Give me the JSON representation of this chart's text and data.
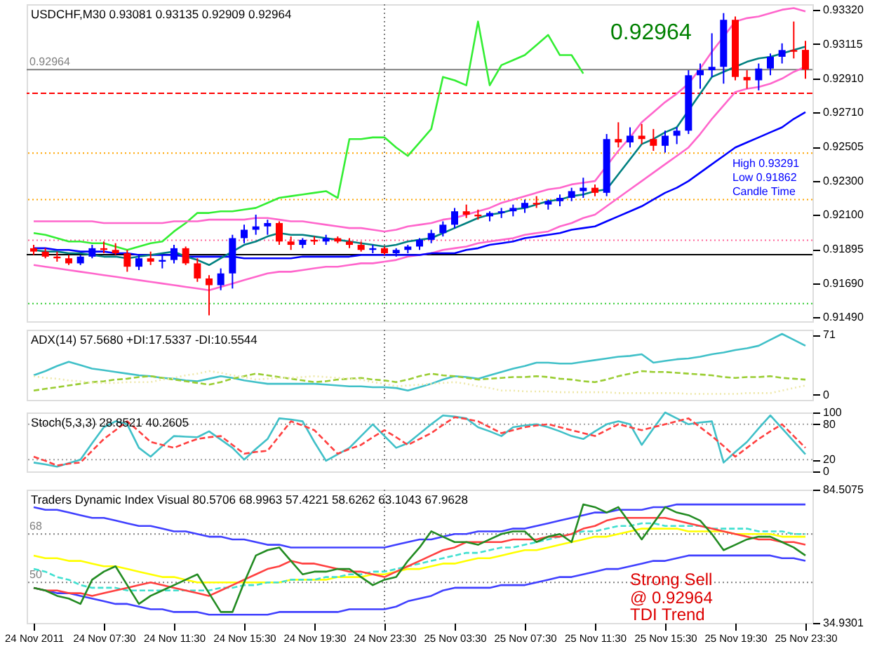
{
  "chart_data": [
    {
      "type": "candlestick",
      "title": "USDCHF,M30 0.93081 0.93135 0.92909 0.92964",
      "categories": [
        "24 Nov 2011",
        null,
        null,
        null,
        null,
        null,
        "24 Nov 07:30",
        null,
        null,
        null,
        null,
        null,
        "24 Nov 11:30",
        null,
        null,
        null,
        null,
        null,
        "24 Nov 15:30",
        null,
        null,
        null,
        null,
        null,
        "24 Nov 19:30",
        null,
        null,
        null,
        null,
        null,
        "24 Nov 23:30",
        null,
        null,
        null,
        null,
        null,
        "25 Nov 03:30",
        null,
        null,
        null,
        null,
        null,
        "25 Nov 07:30",
        null,
        null,
        null,
        null,
        null,
        "25 Nov 11:30",
        null,
        null,
        null,
        null,
        null,
        "25 Nov 15:30",
        null,
        null,
        null,
        null,
        null,
        "25 Nov 19:30",
        null,
        null,
        null,
        null,
        null,
        "25 Nov 23:30"
      ],
      "ohlc": [
        [
          0.919,
          0.9192,
          0.9186,
          0.9188
        ],
        [
          0.9188,
          0.919,
          0.9184,
          0.9185
        ],
        [
          0.9185,
          0.9188,
          0.9182,
          0.9184
        ],
        [
          0.9184,
          0.9186,
          0.918,
          0.9181
        ],
        [
          0.9181,
          0.9186,
          0.918,
          0.9185
        ],
        [
          0.9185,
          0.9192,
          0.9184,
          0.919
        ],
        [
          0.919,
          0.9194,
          0.9187,
          0.9189
        ],
        [
          0.9189,
          0.9193,
          0.9186,
          0.9187
        ],
        [
          0.9187,
          0.9189,
          0.9176,
          0.9179
        ],
        [
          0.9179,
          0.9186,
          0.9177,
          0.9184
        ],
        [
          0.9184,
          0.9188,
          0.918,
          0.9182
        ],
        [
          0.9182,
          0.9186,
          0.9178,
          0.9183
        ],
        [
          0.9183,
          0.9192,
          0.9181,
          0.919
        ],
        [
          0.919,
          0.9191,
          0.918,
          0.9181
        ],
        [
          0.9181,
          0.9184,
          0.917,
          0.9172
        ],
        [
          0.9172,
          0.9174,
          0.915,
          0.9168
        ],
        [
          0.9168,
          0.9178,
          0.9165,
          0.9175
        ],
        [
          0.9175,
          0.9198,
          0.9166,
          0.9196
        ],
        [
          0.9196,
          0.9204,
          0.9193,
          0.9201
        ],
        [
          0.9201,
          0.921,
          0.9198,
          0.9203
        ],
        [
          0.9203,
          0.9207,
          0.9198,
          0.9205
        ],
        [
          0.9205,
          0.9206,
          0.9192,
          0.9194
        ],
        [
          0.9194,
          0.9197,
          0.9189,
          0.9192
        ],
        [
          0.9192,
          0.9196,
          0.919,
          0.9195
        ],
        [
          0.9195,
          0.9197,
          0.9192,
          0.9194
        ],
        [
          0.9194,
          0.9198,
          0.9192,
          0.9196
        ],
        [
          0.9196,
          0.9197,
          0.9193,
          0.9194
        ],
        [
          0.9194,
          0.9196,
          0.919,
          0.9192
        ],
        [
          0.9192,
          0.9194,
          0.9188,
          0.9189
        ],
        [
          0.9189,
          0.9192,
          0.9187,
          0.919
        ],
        [
          0.919,
          0.9191,
          0.9186,
          0.9187
        ],
        [
          0.9187,
          0.919,
          0.9185,
          0.9189
        ],
        [
          0.9189,
          0.9192,
          0.9187,
          0.9191
        ],
        [
          0.9191,
          0.9196,
          0.9189,
          0.9195
        ],
        [
          0.9195,
          0.9201,
          0.9193,
          0.9199
        ],
        [
          0.9199,
          0.9206,
          0.9197,
          0.9204
        ],
        [
          0.9204,
          0.9214,
          0.9202,
          0.9212
        ],
        [
          0.9212,
          0.9216,
          0.9208,
          0.921
        ],
        [
          0.921,
          0.9213,
          0.9207,
          0.9209
        ],
        [
          0.9209,
          0.9212,
          0.9206,
          0.9211
        ],
        [
          0.9211,
          0.9214,
          0.9208,
          0.9212
        ],
        [
          0.9212,
          0.9216,
          0.9209,
          0.9214
        ],
        [
          0.9214,
          0.9219,
          0.9211,
          0.9217
        ],
        [
          0.9217,
          0.9221,
          0.9214,
          0.9216
        ],
        [
          0.9216,
          0.9219,
          0.9213,
          0.9218
        ],
        [
          0.9218,
          0.9222,
          0.9215,
          0.922
        ],
        [
          0.922,
          0.9226,
          0.9218,
          0.9224
        ],
        [
          0.9224,
          0.9232,
          0.922,
          0.9226
        ],
        [
          0.9226,
          0.9228,
          0.9221,
          0.9223
        ],
        [
          0.9223,
          0.9258,
          0.9221,
          0.9255
        ],
        [
          0.9255,
          0.9265,
          0.925,
          0.9253
        ],
        [
          0.9253,
          0.9262,
          0.925,
          0.9257
        ],
        [
          0.9257,
          0.9264,
          0.9252,
          0.9255
        ],
        [
          0.9255,
          0.9261,
          0.9248,
          0.9251
        ],
        [
          0.9251,
          0.926,
          0.9247,
          0.9257
        ],
        [
          0.9257,
          0.9262,
          0.9252,
          0.926
        ],
        [
          0.926,
          0.9296,
          0.9258,
          0.9293
        ],
        [
          0.9293,
          0.93,
          0.9285,
          0.9296
        ],
        [
          0.9296,
          0.9318,
          0.9292,
          0.9298
        ],
        [
          0.9298,
          0.933,
          0.9288,
          0.9326
        ],
        [
          0.9326,
          0.9328,
          0.929,
          0.9292
        ],
        [
          0.9292,
          0.9296,
          0.9285,
          0.929
        ],
        [
          0.929,
          0.93,
          0.9284,
          0.9297
        ],
        [
          0.9297,
          0.9306,
          0.9293,
          0.9304
        ],
        [
          0.9304,
          0.9312,
          0.93,
          0.9308
        ],
        [
          0.9308,
          0.9325,
          0.9303,
          0.9307
        ],
        [
          0.93081,
          0.93135,
          0.92909,
          0.92964
        ]
      ],
      "colors": [
        "#ff0000",
        "#ff0000",
        "#ff0000",
        "#ff0000",
        "#0000ff",
        "#0000ff",
        "#ff0000",
        "#ff0000",
        "#ff0000",
        "#0000ff",
        "#ff0000",
        "#0000ff",
        "#0000ff",
        "#ff0000",
        "#ff0000",
        "#ff0000",
        "#0000ff",
        "#0000ff",
        "#0000ff",
        "#0000ff",
        "#0000ff",
        "#ff0000",
        "#ff0000",
        "#0000ff",
        "#ff0000",
        "#0000ff",
        "#ff0000",
        "#ff0000",
        "#ff0000",
        "#0000ff",
        "#ff0000",
        "#0000ff",
        "#0000ff",
        "#0000ff",
        "#0000ff",
        "#0000ff",
        "#0000ff",
        "#ff0000",
        "#ff0000",
        "#0000ff",
        "#0000ff",
        "#0000ff",
        "#0000ff",
        "#ff0000",
        "#0000ff",
        "#0000ff",
        "#0000ff",
        "#0000ff",
        "#ff0000",
        "#0000ff",
        "#ff0000",
        "#0000ff",
        "#ff0000",
        "#ff0000",
        "#0000ff",
        "#0000ff",
        "#0000ff",
        "#0000ff",
        "#0000ff",
        "#0000ff",
        "#ff0000",
        "#ff0000",
        "#0000ff",
        "#0000ff",
        "#0000ff",
        "#ff0000",
        "#ff0000"
      ],
      "series": [
        {
          "type": "line",
          "color": "#33ee33",
          "values": [
            0.9199,
            0.9198,
            0.9196,
            0.9194,
            0.9194,
            0.9193,
            0.9193,
            0.9191,
            0.9189,
            0.9191,
            0.9193,
            0.9194,
            0.92,
            0.9205,
            0.9211,
            0.9211,
            0.9212,
            0.9212,
            0.9213,
            0.9214,
            0.9217,
            0.922,
            0.9221,
            0.9222,
            0.9223,
            0.9224,
            0.922,
            0.9255,
            0.9255,
            0.9256,
            0.9256,
            0.925,
            0.9245,
            0.9253,
            0.9261,
            0.9292,
            0.929,
            0.9287,
            0.9325,
            0.9287,
            0.9299,
            0.9302,
            0.9305,
            0.9311,
            0.9317,
            0.9305,
            0.9305,
            0.9294,
            null,
            null,
            null,
            null,
            null,
            null,
            null,
            null,
            null,
            null,
            null,
            null,
            null,
            null,
            null,
            null,
            null,
            null,
            null
          ]
        },
        {
          "type": "line",
          "color": "#ff66cc",
          "values": [
            0.9206,
            0.9206,
            0.9206,
            0.9206,
            0.9206,
            0.9206,
            0.9205,
            0.9205,
            0.9205,
            0.9205,
            0.9205,
            0.9205,
            0.9206,
            0.9206,
            0.9206,
            0.9207,
            0.9207,
            0.9207,
            0.9207,
            0.9208,
            0.9208,
            0.9207,
            0.9206,
            0.9206,
            0.9205,
            0.9204,
            0.9203,
            0.9202,
            0.9202,
            0.9201,
            0.92,
            0.9201,
            0.9203,
            0.9204,
            0.9205,
            0.9207,
            0.9208,
            0.921,
            0.9212,
            0.9214,
            0.9217,
            0.9219,
            0.9221,
            0.9223,
            0.9225,
            0.9226,
            0.9228,
            0.9229,
            0.923,
            0.9239,
            0.9248,
            0.9256,
            0.9265,
            0.9271,
            0.9277,
            0.9282,
            0.9288,
            0.9297,
            0.9307,
            0.9316,
            0.9325,
            0.9327,
            0.9328,
            0.933,
            0.9332,
            0.9333,
            0.9331
          ]
        },
        {
          "type": "line",
          "color": "#ff66cc",
          "values": [
            0.918,
            0.9179,
            0.9178,
            0.9177,
            0.9176,
            0.9175,
            0.9174,
            0.9173,
            0.9172,
            0.9171,
            0.917,
            0.9169,
            0.9168,
            0.9167,
            0.9166,
            0.9165,
            0.9167,
            0.9169,
            0.9171,
            0.9173,
            0.9175,
            0.9176,
            0.9176,
            0.9177,
            0.9178,
            0.9179,
            0.9179,
            0.918,
            0.9181,
            0.9181,
            0.9182,
            0.9183,
            0.9185,
            0.9186,
            0.9187,
            0.9189,
            0.919,
            0.9191,
            0.9193,
            0.9194,
            0.9195,
            0.9196,
            0.9198,
            0.9199,
            0.92,
            0.9203,
            0.9205,
            0.9208,
            0.921,
            0.9215,
            0.922,
            0.9225,
            0.923,
            0.9235,
            0.924,
            0.9245,
            0.925,
            0.9258,
            0.9267,
            0.9275,
            0.9283,
            0.9285,
            0.9286,
            0.9288,
            0.9291,
            0.9295,
            0.9298
          ]
        },
        {
          "type": "line",
          "color": "#0000ff",
          "values": [
            0.919,
            0.919,
            0.9189,
            0.9189,
            0.9188,
            0.9188,
            0.9188,
            0.9187,
            0.9187,
            0.9186,
            0.9186,
            0.9186,
            0.9186,
            0.9185,
            0.9185,
            0.9185,
            0.9185,
            0.9185,
            0.9184,
            0.9184,
            0.9184,
            0.9184,
            0.9184,
            0.9185,
            0.9185,
            0.9185,
            0.9185,
            0.9185,
            0.9186,
            0.9186,
            0.9186,
            0.9186,
            0.9186,
            0.9186,
            0.9187,
            0.9187,
            0.9187,
            0.9189,
            0.919,
            0.9192,
            0.9193,
            0.9194,
            0.9196,
            0.9197,
            0.9198,
            0.9199,
            0.9201,
            0.9202,
            0.9203,
            0.9206,
            0.9209,
            0.9212,
            0.9215,
            0.9219,
            0.9223,
            0.9226,
            0.923,
            0.9235,
            0.924,
            0.9245,
            0.925,
            0.9253,
            0.9256,
            0.9259,
            0.9262,
            0.9267,
            0.9271
          ]
        },
        {
          "type": "line",
          "color": "#008080",
          "values": [
            0.9189,
            0.9188,
            0.9188,
            0.9187,
            0.9187,
            0.9186,
            0.9185,
            0.9185,
            0.9184,
            0.9185,
            0.9186,
            0.9187,
            0.9188,
            0.9185,
            0.9183,
            0.918,
            0.9184,
            0.9188,
            0.9192,
            0.9194,
            0.9197,
            0.9199,
            0.9198,
            0.9198,
            0.9197,
            0.9196,
            0.9195,
            0.9194,
            0.9193,
            0.9192,
            0.9191,
            0.9192,
            0.9194,
            0.9195,
            0.9196,
            0.9199,
            0.9202,
            0.9205,
            0.9208,
            0.921,
            0.9211,
            0.9213,
            0.9214,
            0.9216,
            0.9218,
            0.9219,
            0.9221,
            0.9222,
            0.9224,
            0.9225,
            0.9234,
            0.9243,
            0.9252,
            0.9255,
            0.9259,
            0.9262,
            0.9272,
            0.9282,
            0.9292,
            0.9295,
            0.9298,
            0.9301,
            0.9303,
            0.9304,
            0.9306,
            0.9308,
            0.931
          ]
        }
      ],
      "ref_lines": [
        {
          "axis": "y",
          "value": 0.92964,
          "label": "0.92964",
          "color": "#808080",
          "line_style": "solid"
        },
        {
          "axis": "y",
          "value": 0.92823,
          "color": "#ff0000",
          "line_style": "dashed"
        },
        {
          "axis": "y",
          "value": 0.92466,
          "color": "#ffa500",
          "line_style": "dotted"
        },
        {
          "axis": "y",
          "value": 0.9219,
          "color": "#ffa500",
          "line_style": "dotted"
        },
        {
          "axis": "y",
          "value": 0.91947,
          "color": "#ff6699",
          "line_style": "dotted"
        },
        {
          "axis": "y",
          "value": 0.91862,
          "color": "#000000",
          "line_style": "solid"
        },
        {
          "axis": "y",
          "value": 0.9157,
          "color": "#33cc33",
          "line_style": "dotted"
        },
        {
          "axis": "x",
          "value": "24 Nov 23:30",
          "color": "#808080",
          "line_style": "dotted"
        }
      ],
      "annotations": [
        "0.92964",
        "High 0.93291",
        "Low 0.91862",
        "Candle Time"
      ],
      "ylim": [
        0.91465,
        0.93353
      ],
      "yticks": [
        {
          "value": 0.9332,
          "label": "0.93320"
        },
        {
          "value": 0.93115,
          "label": "0.93115"
        },
        {
          "value": 0.9291,
          "label": "0.92910"
        },
        {
          "value": 0.9271,
          "label": "0.92710"
        },
        {
          "value": 0.92505,
          "label": "0.92505"
        },
        {
          "value": 0.923,
          "label": "0.92300"
        },
        {
          "value": 0.921,
          "label": "0.92100"
        },
        {
          "value": 0.91895,
          "label": "0.91895"
        },
        {
          "value": 0.9169,
          "label": "0.91690"
        },
        {
          "value": 0.9149,
          "label": "0.91490"
        }
      ],
      "tick_labels": "y",
      "grid": false
    },
    {
      "type": "line",
      "title": "ADX(14) 57.5680 +DI:17.5337 -DI:10.5544",
      "categories": [
        "24 Nov 2011",
        null,
        null,
        null,
        null,
        null,
        "24 Nov 07:30",
        null,
        null,
        null,
        null,
        null,
        "24 Nov 11:30",
        null,
        null,
        null,
        null,
        null,
        "24 Nov 15:30",
        null,
        null,
        null,
        null,
        null,
        "24 Nov 19:30",
        null,
        null,
        null,
        null,
        null,
        "24 Nov 23:30",
        null,
        null,
        null,
        null,
        null,
        "25 Nov 03:30",
        null,
        null,
        null,
        null,
        null,
        "25 Nov 07:30",
        null,
        null,
        null,
        null,
        null,
        "25 Nov 11:30",
        null,
        null,
        null,
        null,
        null,
        "25 Nov 15:30",
        null,
        null,
        null,
        null,
        null,
        "25 Nov 19:30",
        null,
        null,
        null,
        null,
        null,
        "25 Nov 23:30"
      ],
      "series": [
        {
          "color": "#40c0c8",
          "values": [
            23,
            28,
            34,
            39,
            35,
            31,
            29,
            27,
            25,
            23,
            22,
            20,
            19,
            17,
            16,
            19,
            22,
            20,
            17,
            15,
            13,
            13,
            13,
            13,
            13,
            12,
            11,
            10,
            10,
            9,
            9,
            8,
            5,
            9,
            13,
            18,
            22,
            21,
            19,
            23,
            27,
            31,
            34,
            38,
            38,
            37,
            37,
            39,
            41,
            43,
            45,
            46,
            48,
            38,
            40,
            42,
            43,
            45,
            48,
            50,
            53,
            55,
            58,
            65,
            72,
            65,
            58
          ]
        },
        {
          "color": "#9acd32",
          "line_style": "dashed",
          "values": [
            5,
            7,
            9,
            11,
            13,
            15,
            16,
            18,
            19,
            21,
            22,
            20,
            18,
            16,
            14,
            12,
            15,
            19,
            22,
            25,
            23,
            21,
            19,
            17,
            15,
            16,
            18,
            19,
            20,
            18,
            17,
            15,
            18,
            22,
            25,
            23,
            22,
            20,
            18,
            19,
            20,
            21,
            21,
            22,
            21,
            19,
            18,
            16,
            15,
            18,
            22,
            25,
            28,
            27,
            27,
            26,
            25,
            24,
            23,
            21,
            20,
            21,
            21,
            22,
            20,
            19,
            18
          ]
        },
        {
          "color": "#eee8aa",
          "line_style": "dotted",
          "values": [
            22,
            20,
            19,
            17,
            16,
            14,
            14,
            14,
            15,
            15,
            15,
            18,
            20,
            23,
            25,
            28,
            26,
            23,
            21,
            18,
            19,
            20,
            20,
            21,
            22,
            21,
            20,
            19,
            18,
            15,
            13,
            10,
            11,
            12,
            13,
            14,
            15,
            13,
            10,
            8,
            5,
            5,
            4,
            4,
            4,
            3,
            3,
            3,
            3,
            3,
            2,
            2,
            2,
            2,
            2,
            2,
            1,
            1,
            1,
            1,
            1,
            2,
            2,
            2,
            5,
            8,
            11
          ]
        }
      ],
      "ref_lines": [
        {
          "axis": "x",
          "value": "24 Nov 23:30",
          "color": "#808080",
          "line_style": "dotted"
        }
      ],
      "ylim": [
        -6,
        77
      ],
      "yticks": [
        0,
        71
      ],
      "tick_labels": "y",
      "grid": false
    },
    {
      "type": "line",
      "title": "Stoch(5,3,3) 28.8521 40.2605",
      "categories": [
        "24 Nov 2011",
        null,
        null,
        null,
        null,
        null,
        "24 Nov 07:30",
        null,
        null,
        null,
        null,
        null,
        "24 Nov 11:30",
        null,
        null,
        null,
        null,
        null,
        "24 Nov 15:30",
        null,
        null,
        null,
        null,
        null,
        "24 Nov 19:30",
        null,
        null,
        null,
        null,
        null,
        "24 Nov 23:30",
        null,
        null,
        null,
        null,
        null,
        "25 Nov 03:30",
        null,
        null,
        null,
        null,
        null,
        "25 Nov 07:30",
        null,
        null,
        null,
        null,
        null,
        "25 Nov 11:30",
        null,
        null,
        null,
        null,
        null,
        "25 Nov 15:30",
        null,
        null,
        null,
        null,
        null,
        "25 Nov 19:30",
        null,
        null,
        null,
        null,
        null,
        "25 Nov 23:30"
      ],
      "series": [
        {
          "color": "#40c0c8",
          "values": [
            15,
            12,
            8,
            14,
            20,
            48,
            75,
            85,
            80,
            40,
            25,
            43,
            60,
            59,
            58,
            68,
            54,
            40,
            20,
            38,
            55,
            90,
            88,
            85,
            50,
            18,
            29,
            40,
            60,
            80,
            60,
            40,
            48,
            64,
            80,
            95,
            93,
            90,
            75,
            68,
            60,
            75,
            78,
            80,
            75,
            68,
            60,
            55,
            68,
            80,
            85,
            80,
            45,
            73,
            100,
            90,
            80,
            83,
            85,
            15,
            33,
            50,
            73,
            95,
            73,
            51,
            29
          ]
        },
        {
          "color": "#ff4040",
          "line_style": "dashed",
          "values": [
            25,
            18,
            10,
            13,
            15,
            35,
            55,
            70,
            85,
            68,
            50,
            45,
            40,
            48,
            55,
            58,
            60,
            45,
            30,
            33,
            35,
            60,
            85,
            78,
            70,
            50,
            30,
            38,
            45,
            58,
            70,
            58,
            45,
            55,
            65,
            79,
            92,
            89,
            85,
            75,
            65,
            70,
            75,
            78,
            80,
            75,
            70,
            65,
            60,
            70,
            80,
            75,
            70,
            75,
            80,
            85,
            90,
            75,
            60,
            43,
            25,
            40,
            55,
            68,
            80,
            60,
            40
          ]
        }
      ],
      "ref_lines": [
        {
          "axis": "y",
          "value": 80,
          "color": "#a0a0a0",
          "line_style": "dotted"
        },
        {
          "axis": "y",
          "value": 20,
          "color": "#a0a0a0",
          "line_style": "dotted"
        },
        {
          "axis": "x",
          "value": "24 Nov 23:30",
          "color": "#808080",
          "line_style": "dotted"
        }
      ],
      "ylim": [
        0,
        100
      ],
      "yticks": [
        0,
        20,
        80,
        100
      ],
      "tick_labels": "y",
      "grid": false
    },
    {
      "type": "line",
      "title": "Traders Dynamic Index Visual 80.5706 68.9963 57.4221 58.6262 63.1043 67.9628",
      "categories": [
        "24 Nov 2011",
        null,
        null,
        null,
        null,
        null,
        "24 Nov 07:30",
        null,
        null,
        null,
        null,
        null,
        "24 Nov 11:30",
        null,
        null,
        null,
        null,
        null,
        "24 Nov 15:30",
        null,
        null,
        null,
        null,
        null,
        "24 Nov 19:30",
        null,
        null,
        null,
        null,
        null,
        "24 Nov 23:30",
        null,
        null,
        null,
        null,
        null,
        "25 Nov 03:30",
        null,
        null,
        null,
        null,
        null,
        "25 Nov 07:30",
        null,
        null,
        null,
        null,
        null,
        "25 Nov 11:30",
        null,
        null,
        null,
        null,
        null,
        "25 Nov 15:30",
        null,
        null,
        null,
        null,
        null,
        "25 Nov 19:30",
        null,
        null,
        null,
        null,
        null,
        "25 Nov 23:30"
      ],
      "series": [
        {
          "color": "#4040ff",
          "values": [
            78,
            77,
            77,
            76,
            75,
            74,
            74,
            73,
            72,
            71,
            71,
            70,
            69,
            69,
            68,
            67,
            67,
            66,
            66,
            65,
            64,
            64,
            63,
            63,
            63,
            63,
            63,
            63,
            63,
            63,
            63,
            64,
            65,
            66,
            66,
            67,
            68,
            68,
            69,
            69,
            69,
            70,
            70,
            71,
            72,
            73,
            74,
            75,
            76,
            76,
            77,
            77,
            77,
            78,
            78,
            79,
            79,
            79,
            79,
            79,
            79,
            79,
            79,
            79,
            79,
            79,
            79
          ]
        },
        {
          "color": "#4040ff",
          "values": [
            48,
            47,
            46,
            46,
            45,
            44,
            43,
            42,
            42,
            41,
            40,
            40,
            39,
            39,
            39,
            38,
            38,
            38,
            38,
            38,
            38,
            39,
            39,
            39,
            39,
            39,
            39,
            40,
            40,
            40,
            40,
            41,
            43,
            44,
            45,
            47,
            48,
            48,
            48,
            48,
            49,
            49,
            49,
            50,
            51,
            52,
            52,
            53,
            54,
            55,
            55,
            56,
            57,
            58,
            58,
            59,
            60,
            60,
            60,
            60,
            60,
            60,
            60,
            60,
            59,
            59,
            58
          ]
        },
        {
          "color": "#ffff00",
          "values": [
            60,
            59,
            59,
            58,
            58,
            57,
            56,
            56,
            55,
            54,
            53,
            52,
            52,
            51,
            50,
            50,
            50,
            50,
            50,
            50,
            50,
            50,
            51,
            51,
            51,
            51,
            52,
            52,
            52,
            53,
            53,
            54,
            55,
            55,
            56,
            57,
            57,
            58,
            59,
            59,
            60,
            61,
            62,
            62,
            63,
            64,
            65,
            66,
            67,
            67,
            68,
            69,
            70,
            70,
            70,
            70,
            69,
            69,
            69,
            69,
            68,
            68,
            68,
            68,
            67,
            67,
            67
          ]
        },
        {
          "color": "#40e0d0",
          "line_style": "dashed",
          "values": [
            55,
            54,
            52,
            51,
            49,
            48,
            48,
            48,
            47,
            47,
            47,
            47,
            47,
            47,
            47,
            47,
            48,
            48,
            49,
            49,
            50,
            50,
            51,
            51,
            51,
            52,
            52,
            53,
            53,
            54,
            54,
            55,
            56,
            57,
            58,
            59,
            60,
            61,
            61,
            62,
            63,
            63,
            64,
            65,
            66,
            67,
            68,
            69,
            69,
            70,
            71,
            71,
            72,
            72,
            71,
            71,
            71,
            71,
            70,
            70,
            70,
            70,
            69,
            69,
            69,
            68,
            68
          ]
        },
        {
          "color": "#ff4040",
          "values": [
            48,
            47,
            47,
            46,
            46,
            45,
            46,
            47,
            48,
            49,
            50,
            49,
            48,
            47,
            46,
            45,
            47,
            49,
            51,
            53,
            55,
            56,
            58,
            57,
            57,
            56,
            55,
            54,
            54,
            53,
            52,
            54,
            56,
            58,
            60,
            62,
            63,
            65,
            65,
            65,
            65,
            66,
            66,
            66,
            67,
            67,
            68,
            70,
            71,
            73,
            74,
            74,
            74,
            74,
            74,
            73,
            72,
            71,
            70,
            69,
            68,
            67,
            66,
            66,
            65,
            65,
            64
          ]
        },
        {
          "color": "#228b22",
          "values": [
            48,
            47,
            45,
            44,
            42,
            51,
            54,
            56,
            49,
            42,
            45,
            47,
            49,
            51,
            53,
            46,
            39,
            39,
            50,
            60,
            62,
            63,
            58,
            53,
            54,
            54,
            55,
            55,
            52,
            49,
            51,
            52,
            58,
            63,
            69,
            67,
            65,
            65,
            64,
            66,
            68,
            69,
            69,
            65,
            67,
            68,
            65,
            79,
            78,
            76,
            78,
            72,
            66,
            72,
            78,
            76,
            75,
            73,
            68,
            62,
            64,
            66,
            67,
            67,
            65,
            63,
            60
          ]
        }
      ],
      "ref_lines": [
        {
          "axis": "y",
          "value": 68,
          "label": "68",
          "color": "#808080",
          "line_style": "dotted"
        },
        {
          "axis": "y",
          "value": 50,
          "label": "50",
          "color": "#808080",
          "line_style": "dotted"
        },
        {
          "axis": "x",
          "value": "24 Nov 23:30",
          "color": "#808080",
          "line_style": "dotted"
        }
      ],
      "annotations": [
        "Strong Sell",
        "@ 0.92964",
        "TDI Trend"
      ],
      "ylim": [
        34.9301,
        84.5075
      ],
      "yticks": [
        34.9301,
        84.5075
      ],
      "grid": false
    }
  ]
}
